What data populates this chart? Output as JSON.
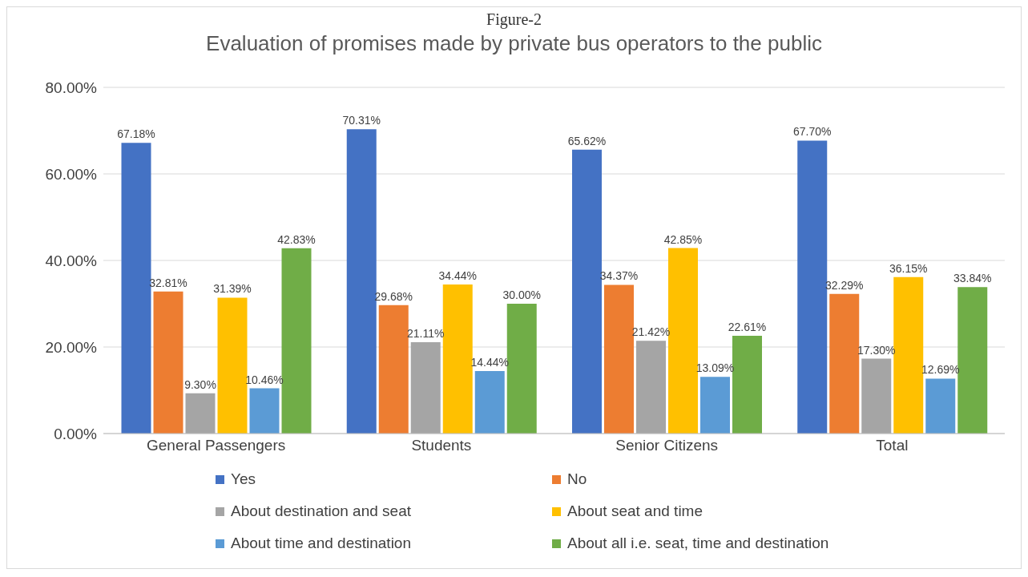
{
  "chart_data": {
    "type": "bar",
    "title": "Evaluation of promises made by private bus operators to the public",
    "annotations": [
      "Figure-2"
    ],
    "categories": [
      "General Passengers",
      "Students",
      "Senior Citizens",
      "Total"
    ],
    "series": [
      {
        "name": "Yes",
        "color": "#4472c4",
        "values": [
          67.18,
          70.31,
          65.62,
          67.7
        ],
        "value_labels": [
          "67.18%",
          "70.31%",
          "65.62%",
          "67.70%"
        ]
      },
      {
        "name": "No",
        "color": "#ed7d31",
        "values": [
          32.81,
          29.68,
          34.37,
          32.29
        ],
        "value_labels": [
          "32.81%",
          "29.68%",
          "34.37%",
          "32.29%"
        ]
      },
      {
        "name": "About destination and seat",
        "color": "#a5a5a5",
        "values": [
          9.3,
          21.11,
          21.42,
          17.3
        ],
        "value_labels": [
          "9.30%",
          "21.11%",
          "21.42%",
          "17.30%"
        ]
      },
      {
        "name": "About seat and time",
        "color": "#ffc000",
        "values": [
          31.39,
          34.44,
          42.85,
          36.15
        ],
        "value_labels": [
          "31.39%",
          "34.44%",
          "42.85%",
          "36.15%"
        ]
      },
      {
        "name": "About time and destination",
        "color": "#5b9bd5",
        "values": [
          10.46,
          14.44,
          13.09,
          12.69
        ],
        "value_labels": [
          "10.46%",
          "14.44%",
          "13.09%",
          "12.69%"
        ]
      },
      {
        "name": "About all i.e. seat, time and destination",
        "color": "#70ad47",
        "values": [
          42.83,
          30.0,
          22.61,
          33.84
        ],
        "value_labels": [
          "42.83%",
          "30.00%",
          "22.61%",
          "33.84%"
        ]
      }
    ],
    "ylim": [
      0,
      80
    ],
    "yticks": [
      {
        "value": 0,
        "label": "0.00%"
      },
      {
        "value": 20,
        "label": "20.00%"
      },
      {
        "value": 40,
        "label": "40.00%"
      },
      {
        "value": 60,
        "label": "60.00%"
      },
      {
        "value": 80,
        "label": "80.00%"
      }
    ],
    "grid": "y",
    "legend": "bottom"
  }
}
